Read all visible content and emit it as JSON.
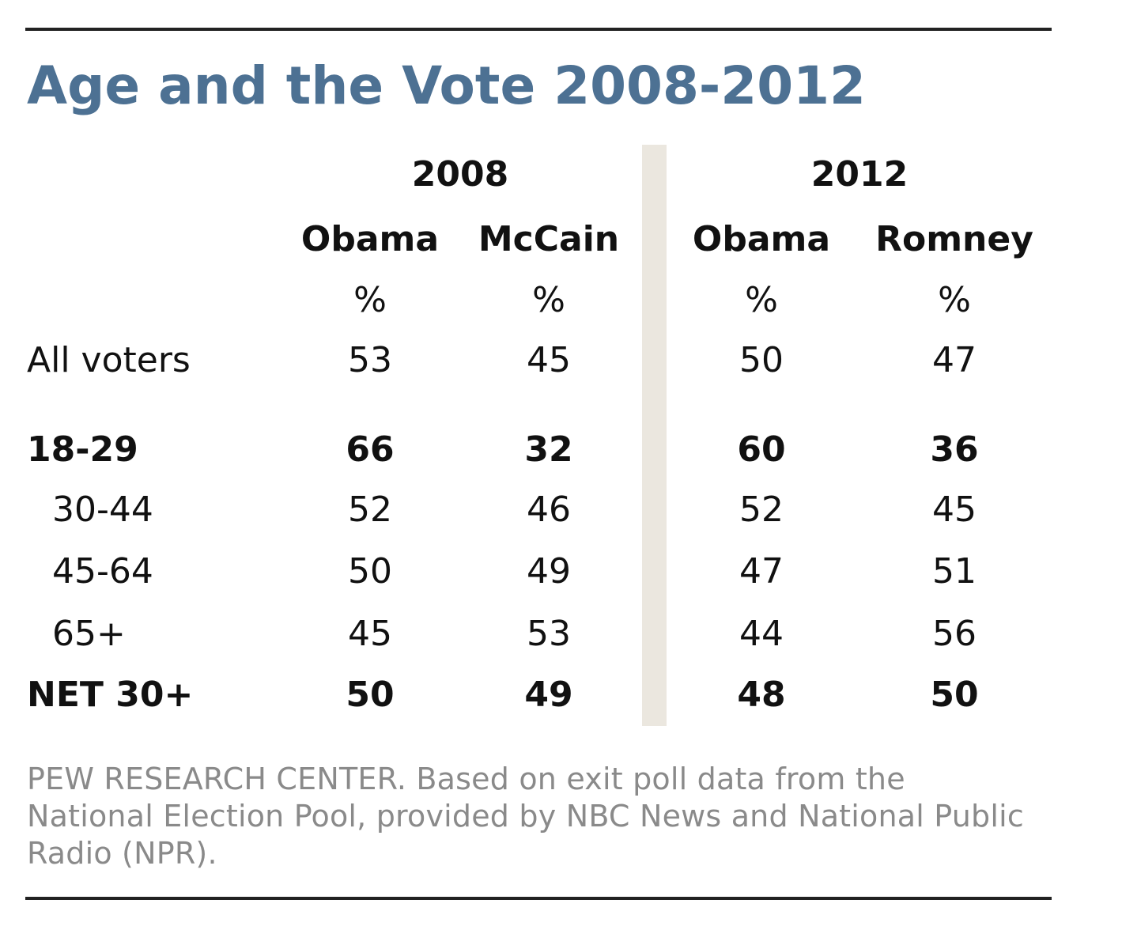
{
  "chart_data": {
    "type": "table",
    "title": "Age and the Vote 2008-2012",
    "groups": [
      {
        "year": "2008",
        "candidates": [
          "Obama",
          "McCain"
        ]
      },
      {
        "year": "2012",
        "candidates": [
          "Obama",
          "Romney"
        ]
      }
    ],
    "unit": "%",
    "rows": [
      {
        "label": "All voters",
        "bold": false,
        "values": [
          "53",
          "45",
          "50",
          "47"
        ]
      },
      {
        "label": "18-29",
        "bold": true,
        "values": [
          "66",
          "32",
          "60",
          "36"
        ]
      },
      {
        "label": "30-44",
        "bold": false,
        "values": [
          "52",
          "46",
          "52",
          "45"
        ]
      },
      {
        "label": "45-64",
        "bold": false,
        "values": [
          "50",
          "49",
          "47",
          "51"
        ]
      },
      {
        "label": "65+",
        "bold": false,
        "values": [
          "45",
          "53",
          "44",
          "56"
        ]
      },
      {
        "label": "NET 30+",
        "bold": true,
        "values": [
          "50",
          "49",
          "48",
          "50"
        ]
      }
    ]
  },
  "source": "PEW RESEARCH  CENTER.  Based on exit poll data from the National Election Pool, provided by NBC News and National Public Radio (NPR).",
  "colors": {
    "title": "#4d7193",
    "divider": "#ebe7df",
    "source_text": "#8a8a8a"
  }
}
